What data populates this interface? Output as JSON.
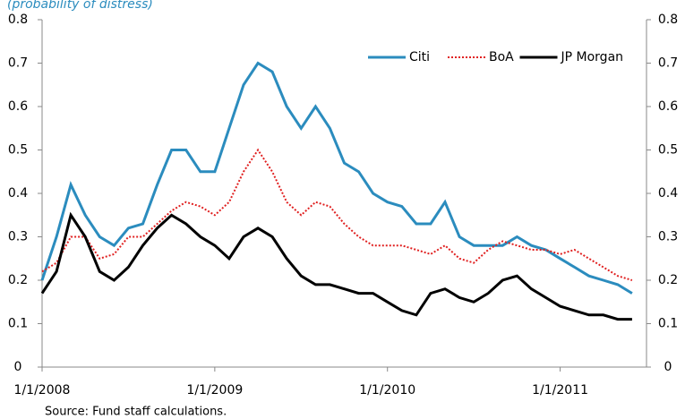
{
  "chart_data": {
    "type": "line",
    "subtitle": "(probability of distress)",
    "source": "Source: Fund staff calculations.",
    "x": [
      "2008-01",
      "2008-02",
      "2008-03",
      "2008-04",
      "2008-05",
      "2008-06",
      "2008-07",
      "2008-08",
      "2008-09",
      "2008-10",
      "2008-11",
      "2008-12",
      "2009-01",
      "2009-02",
      "2009-03",
      "2009-04",
      "2009-05",
      "2009-06",
      "2009-07",
      "2009-08",
      "2009-09",
      "2009-10",
      "2009-11",
      "2009-12",
      "2010-01",
      "2010-02",
      "2010-03",
      "2010-04",
      "2010-05",
      "2010-06",
      "2010-07",
      "2010-08",
      "2010-09",
      "2010-10",
      "2010-11",
      "2010-12",
      "2011-01",
      "2011-02",
      "2011-03",
      "2011-04",
      "2011-05",
      "2011-06"
    ],
    "xlim": [
      "2008-01",
      "2011-07"
    ],
    "xticks": [
      {
        "value": "2008-01",
        "label": "1/1/2008"
      },
      {
        "value": "2009-01",
        "label": "1/1/2009"
      },
      {
        "value": "2010-01",
        "label": "1/1/2010"
      },
      {
        "value": "2011-01",
        "label": "1/1/2011"
      }
    ],
    "ylim": [
      0,
      0.8
    ],
    "yticks": [
      0,
      0.1,
      0.2,
      0.3,
      0.4,
      0.5,
      0.6,
      0.7,
      0.8
    ],
    "y2lim": [
      0,
      0.8
    ],
    "y2ticks": [
      0,
      0.1,
      0.2,
      0.3,
      0.4,
      0.5,
      0.6,
      0.7,
      0.8
    ],
    "legend": "upper right",
    "series": [
      {
        "name": "Citi",
        "color": "#2b8cbe",
        "dash": "solid",
        "values": [
          0.2,
          0.3,
          0.42,
          0.35,
          0.3,
          0.28,
          0.32,
          0.33,
          0.42,
          0.5,
          0.5,
          0.45,
          0.45,
          0.55,
          0.65,
          0.7,
          0.68,
          0.6,
          0.55,
          0.6,
          0.55,
          0.47,
          0.45,
          0.4,
          0.38,
          0.37,
          0.33,
          0.33,
          0.38,
          0.3,
          0.28,
          0.28,
          0.28,
          0.3,
          0.28,
          0.27,
          0.25,
          0.23,
          0.21,
          0.2,
          0.19,
          0.17
        ]
      },
      {
        "name": "BoA",
        "color": "#e02020",
        "dash": "dotted",
        "values": [
          0.22,
          0.24,
          0.3,
          0.3,
          0.25,
          0.26,
          0.3,
          0.3,
          0.33,
          0.36,
          0.38,
          0.37,
          0.35,
          0.38,
          0.45,
          0.5,
          0.45,
          0.38,
          0.35,
          0.38,
          0.37,
          0.33,
          0.3,
          0.28,
          0.28,
          0.28,
          0.27,
          0.26,
          0.28,
          0.25,
          0.24,
          0.27,
          0.29,
          0.28,
          0.27,
          0.27,
          0.26,
          0.27,
          0.25,
          0.23,
          0.21,
          0.2
        ]
      },
      {
        "name": "JP Morgan",
        "color": "#000000",
        "dash": "solid",
        "values": [
          0.17,
          0.22,
          0.35,
          0.3,
          0.22,
          0.2,
          0.23,
          0.28,
          0.32,
          0.35,
          0.33,
          0.3,
          0.28,
          0.25,
          0.3,
          0.32,
          0.3,
          0.25,
          0.21,
          0.19,
          0.19,
          0.18,
          0.17,
          0.17,
          0.15,
          0.13,
          0.12,
          0.17,
          0.18,
          0.16,
          0.15,
          0.17,
          0.2,
          0.21,
          0.18,
          0.16,
          0.14,
          0.13,
          0.12,
          0.12,
          0.11,
          0.11
        ]
      }
    ]
  }
}
